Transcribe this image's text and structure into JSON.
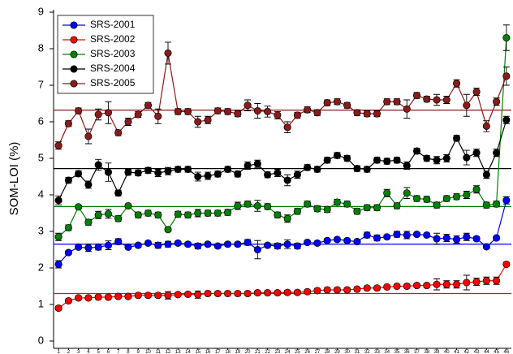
{
  "chart_data": {
    "type": "line",
    "ylabel": "SOM-LOI (%)",
    "categories": [
      "1",
      "2",
      "3",
      "4",
      "5",
      "6",
      "7",
      "8",
      "9",
      "10",
      "11",
      "12",
      "13",
      "14",
      "15",
      "16",
      "17",
      "18",
      "19",
      "20",
      "21",
      "22",
      "23",
      "24",
      "25",
      "26",
      "27",
      "28",
      "29",
      "30",
      "31",
      "32",
      "33",
      "34",
      "35",
      "36",
      "37",
      "38",
      "39",
      "40",
      "41",
      "42",
      "43",
      "44",
      "45",
      "46"
    ],
    "ylim": [
      -0.2,
      9
    ],
    "yticks": [
      0,
      1,
      2,
      3,
      4,
      5,
      6,
      7,
      8,
      9
    ],
    "legend": "upper-left",
    "series": [
      {
        "name": "SRS-2001",
        "color": "#0000ff",
        "mean": 2.65,
        "values": [
          2.1,
          2.42,
          2.57,
          2.55,
          2.57,
          2.62,
          2.72,
          2.57,
          2.62,
          2.68,
          2.62,
          2.65,
          2.68,
          2.65,
          2.6,
          2.65,
          2.6,
          2.65,
          2.65,
          2.7,
          2.5,
          2.62,
          2.6,
          2.65,
          2.6,
          2.7,
          2.68,
          2.75,
          2.78,
          2.75,
          2.72,
          2.9,
          2.82,
          2.85,
          2.92,
          2.9,
          2.92,
          2.9,
          2.8,
          2.82,
          2.78,
          2.85,
          2.8,
          2.58,
          2.82,
          3.85
        ],
        "errors": [
          0.1,
          0.05,
          0.05,
          0.1,
          0.08,
          0.12,
          0.08,
          0.05,
          0.05,
          0.05,
          0.08,
          0.08,
          0.05,
          0.05,
          0.08,
          0.05,
          0.05,
          0.05,
          0.05,
          0.08,
          0.25,
          0.05,
          0.08,
          0.12,
          0.08,
          0.05,
          0.05,
          0.05,
          0.05,
          0.05,
          0.05,
          0.08,
          0.08,
          0.05,
          0.08,
          0.1,
          0.05,
          0.05,
          0.15,
          0.1,
          0.1,
          0.1,
          0.05,
          0.05,
          0.05,
          0.1
        ]
      },
      {
        "name": "SRS-2002",
        "color": "#ff0000",
        "mean": 1.3,
        "values": [
          0.9,
          1.1,
          1.18,
          1.18,
          1.2,
          1.2,
          1.22,
          1.22,
          1.25,
          1.25,
          1.25,
          1.25,
          1.27,
          1.28,
          1.27,
          1.3,
          1.3,
          1.3,
          1.3,
          1.3,
          1.32,
          1.32,
          1.32,
          1.33,
          1.33,
          1.35,
          1.38,
          1.4,
          1.4,
          1.4,
          1.42,
          1.45,
          1.45,
          1.48,
          1.5,
          1.5,
          1.52,
          1.52,
          1.55,
          1.55,
          1.55,
          1.6,
          1.62,
          1.65,
          1.65,
          2.1
        ],
        "errors": [
          0.05,
          0.05,
          0.05,
          0.05,
          0.05,
          0.05,
          0.05,
          0.05,
          0.05,
          0.05,
          0.05,
          0.1,
          0.05,
          0.05,
          0.1,
          0.05,
          0.05,
          0.05,
          0.05,
          0.05,
          0.05,
          0.05,
          0.05,
          0.05,
          0.05,
          0.05,
          0.05,
          0.05,
          0.05,
          0.05,
          0.05,
          0.05,
          0.05,
          0.05,
          0.05,
          0.05,
          0.05,
          0.05,
          0.15,
          0.1,
          0.1,
          0.2,
          0.1,
          0.1,
          0.1,
          0.05
        ]
      },
      {
        "name": "SRS-2003",
        "color": "#008000",
        "mean": 3.68,
        "values": [
          2.85,
          3.1,
          3.67,
          3.25,
          3.45,
          3.48,
          3.35,
          3.7,
          3.45,
          3.5,
          3.45,
          3.05,
          3.47,
          3.45,
          3.5,
          3.5,
          3.5,
          3.52,
          3.7,
          3.75,
          3.7,
          3.68,
          3.45,
          3.35,
          3.55,
          3.75,
          3.62,
          3.6,
          3.8,
          3.75,
          3.55,
          3.65,
          3.65,
          4.05,
          3.7,
          4.05,
          3.9,
          3.88,
          3.72,
          3.9,
          3.95,
          4.0,
          4.15,
          3.72,
          3.75,
          8.3
        ],
        "errors": [
          0.1,
          0.08,
          0.05,
          0.08,
          0.1,
          0.12,
          0.08,
          0.05,
          0.08,
          0.08,
          0.08,
          0.05,
          0.08,
          0.08,
          0.1,
          0.08,
          0.08,
          0.08,
          0.1,
          0.08,
          0.15,
          0.08,
          0.08,
          0.1,
          0.08,
          0.08,
          0.08,
          0.08,
          0.08,
          0.08,
          0.08,
          0.08,
          0.08,
          0.1,
          0.08,
          0.15,
          0.08,
          0.08,
          0.08,
          0.08,
          0.08,
          0.1,
          0.1,
          0.08,
          0.08,
          0.35
        ]
      },
      {
        "name": "SRS-2004",
        "color": "#000000",
        "mean": 4.72,
        "values": [
          3.85,
          4.4,
          4.58,
          4.28,
          4.82,
          4.62,
          4.05,
          4.62,
          4.6,
          4.67,
          4.6,
          4.65,
          4.7,
          4.7,
          4.5,
          4.52,
          4.57,
          4.7,
          4.57,
          4.8,
          4.85,
          4.55,
          4.6,
          4.4,
          4.55,
          4.75,
          4.7,
          4.95,
          5.08,
          5.0,
          4.72,
          4.7,
          4.95,
          4.92,
          4.95,
          4.8,
          5.2,
          5.0,
          4.95,
          5.0,
          5.55,
          5.02,
          5.15,
          4.55,
          5.15,
          6.05
        ],
        "errors": [
          0.12,
          0.08,
          0.08,
          0.1,
          0.15,
          0.25,
          0.08,
          0.08,
          0.08,
          0.08,
          0.1,
          0.1,
          0.08,
          0.08,
          0.12,
          0.1,
          0.08,
          0.08,
          0.08,
          0.1,
          0.1,
          0.08,
          0.1,
          0.15,
          0.1,
          0.08,
          0.08,
          0.08,
          0.08,
          0.08,
          0.08,
          0.08,
          0.08,
          0.08,
          0.08,
          0.1,
          0.08,
          0.08,
          0.1,
          0.1,
          0.08,
          0.2,
          0.1,
          0.1,
          0.1,
          0.1
        ]
      },
      {
        "name": "SRS-2005",
        "color": "#8b1a1a",
        "mean": 6.32,
        "values": [
          5.35,
          5.95,
          6.3,
          5.6,
          6.2,
          6.25,
          5.7,
          6.0,
          6.2,
          6.45,
          6.15,
          7.88,
          6.28,
          6.28,
          6.0,
          6.05,
          6.3,
          6.28,
          6.22,
          6.45,
          6.3,
          6.28,
          6.18,
          5.85,
          6.18,
          6.33,
          6.25,
          6.52,
          6.55,
          6.45,
          6.25,
          6.22,
          6.22,
          6.55,
          6.55,
          6.35,
          6.72,
          6.62,
          6.6,
          6.6,
          7.05,
          6.45,
          6.82,
          5.88,
          6.55,
          7.25
        ],
        "errors": [
          0.1,
          0.08,
          0.08,
          0.2,
          0.15,
          0.3,
          0.08,
          0.1,
          0.08,
          0.08,
          0.2,
          0.3,
          0.08,
          0.08,
          0.15,
          0.1,
          0.08,
          0.08,
          0.08,
          0.15,
          0.2,
          0.15,
          0.1,
          0.15,
          0.08,
          0.08,
          0.08,
          0.08,
          0.08,
          0.08,
          0.08,
          0.08,
          0.08,
          0.08,
          0.08,
          0.25,
          0.08,
          0.08,
          0.15,
          0.1,
          0.1,
          0.3,
          0.1,
          0.15,
          0.1,
          0.25
        ]
      }
    ]
  }
}
